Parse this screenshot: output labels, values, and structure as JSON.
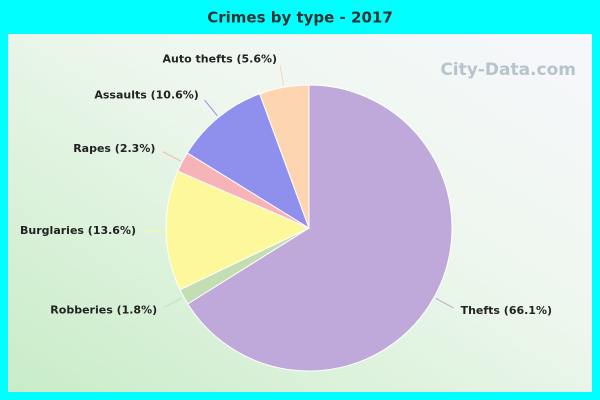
{
  "chart_data": {
    "type": "pie",
    "title": "Crimes by type - 2017",
    "values": [
      66.1,
      1.8,
      13.6,
      2.3,
      10.6,
      5.6
    ],
    "value_labels": [
      "Thefts (66.1%)",
      "Robberies (1.8%)",
      "Burglaries (13.6%)",
      "Rapes (2.3%)",
      "Assaults (10.6%)",
      "Auto thefts (5.6%)"
    ],
    "colors": [
      "#bfa8da",
      "#c3deb2",
      "#fdf89b",
      "#f7b4b8",
      "#8f90ee",
      "#fdd6b1"
    ],
    "watermark": "City-Data.com"
  }
}
